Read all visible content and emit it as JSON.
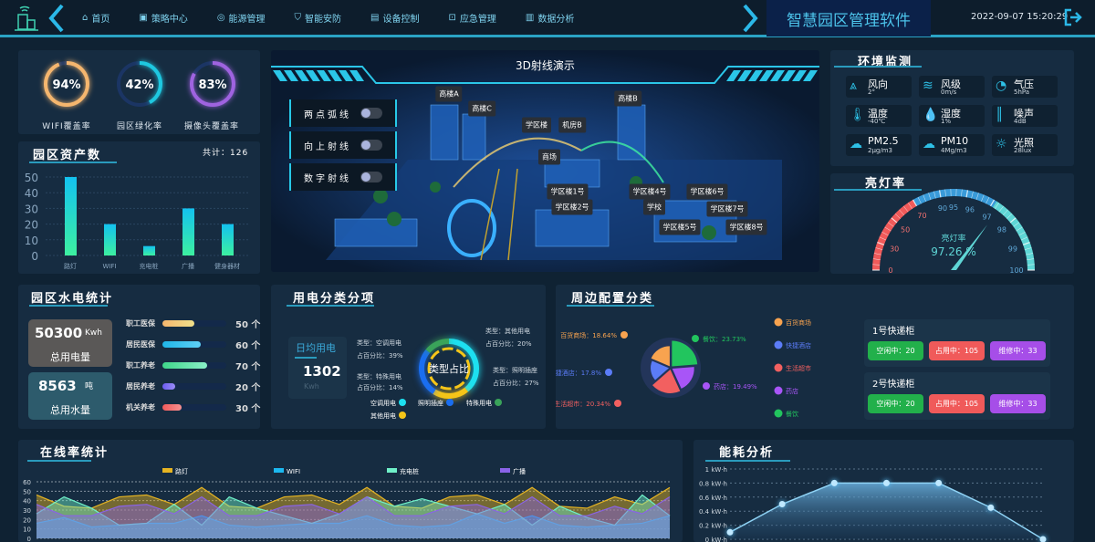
{
  "header": {
    "title": "智慧园区管理软件",
    "datetime": "2022-09-07 15:20:29",
    "nav": [
      {
        "label": "首页",
        "icon": "home-icon"
      },
      {
        "label": "策略中心",
        "icon": "strategy-icon"
      },
      {
        "label": "能源管理",
        "icon": "energy-icon"
      },
      {
        "label": "智能安防",
        "icon": "shield-icon"
      },
      {
        "label": "设备控制",
        "icon": "device-icon"
      },
      {
        "label": "应急管理",
        "icon": "emergency-icon"
      },
      {
        "label": "数据分析",
        "icon": "chart-icon"
      }
    ]
  },
  "rings": [
    {
      "value": "94%",
      "pct": 94,
      "label": "WIFI覆盖率",
      "color": "#f5b66e"
    },
    {
      "value": "42%",
      "pct": 42,
      "label": "园区绿化率",
      "color": "#1ec8e0"
    },
    {
      "value": "83%",
      "pct": 83,
      "label": "摄像头覆盖率",
      "color": "#9f63e0"
    }
  ],
  "assets": {
    "title": "园区资产数",
    "total": "共计：126",
    "chart_data": {
      "type": "bar",
      "categories": [
        "路灯",
        "WIFI",
        "充电桩",
        "广播",
        "健身器材"
      ],
      "values": [
        50,
        20,
        6,
        30,
        20
      ],
      "ylim": [
        0,
        50
      ],
      "yticks": [
        "0",
        "10",
        "20",
        "30",
        "40",
        "50"
      ],
      "grid": true
    }
  },
  "scene": {
    "title": "3D射线演示",
    "toggles": [
      "两点弧线",
      "向上射线",
      "数字射线"
    ],
    "labels": [
      "高楼A",
      "高楼C",
      "高楼B",
      "学区楼",
      "机房B",
      "商场",
      "学区楼1号",
      "学区楼2号",
      "学区楼4号",
      "学区楼6号",
      "学区楼7号",
      "学校",
      "学区楼5号",
      "学区楼8号"
    ]
  },
  "env": {
    "title": "环境监测",
    "items": [
      {
        "name": "风向",
        "value": "2°",
        "icon": "wind-direction-icon"
      },
      {
        "name": "风级",
        "value": "0m/s",
        "icon": "wind-icon"
      },
      {
        "name": "气压",
        "value": "5hPa",
        "icon": "pressure-gauge-icon"
      },
      {
        "name": "温度",
        "value": "-40℃",
        "icon": "thermometer-icon"
      },
      {
        "name": "湿度",
        "value": "1%",
        "icon": "water-drop-icon"
      },
      {
        "name": "噪声",
        "value": "4dB",
        "icon": "sound-wave-icon"
      },
      {
        "name": "PM2.5",
        "value": "2μg/m3",
        "icon": "pm-cloud-icon"
      },
      {
        "name": "PM10",
        "value": "4Mg/m3",
        "icon": "pm-cloud-icon"
      },
      {
        "name": "光照",
        "value": "28lux",
        "icon": "sun-icon"
      }
    ]
  },
  "light": {
    "title": "亮灯率",
    "gauge_label": "亮灯率",
    "value_text": "97.26 %",
    "value": 97.26,
    "scale": [
      "0",
      "30",
      "50",
      "70",
      "90",
      "95",
      "96",
      "97",
      "98",
      "99",
      "100"
    ],
    "colors": {
      "low": "#f05a5a",
      "mid": "#3a9bd9",
      "high": "#5fd6d6"
    }
  },
  "water": {
    "title": "园区水电统计",
    "power": {
      "value": "50300",
      "unit": "Kwh",
      "label": "总用电量"
    },
    "water": {
      "value": "8563",
      "unit": "吨",
      "label": "总用水量"
    },
    "bars": [
      {
        "name": "职工医保",
        "value": 50,
        "text": "50 个",
        "color": "linear-gradient(90deg,#f5b66e,#f0e08a)"
      },
      {
        "name": "居民医保",
        "value": 60,
        "text": "60 个",
        "color": "linear-gradient(90deg,#1fb6e8,#5fd0f5)"
      },
      {
        "name": "职工养老",
        "value": 70,
        "text": "70 个",
        "color": "linear-gradient(90deg,#3fd68a,#8af0c8)"
      },
      {
        "name": "居民养老",
        "value": 20,
        "text": "20 个",
        "color": "linear-gradient(90deg,#6b5cf0,#9a8cf7)"
      },
      {
        "name": "机关养老",
        "value": 30,
        "text": "30 个",
        "color": "linear-gradient(90deg,#f05a5a,#f59090)"
      }
    ]
  },
  "electric": {
    "title": "用电分类分项",
    "daily_label": "日均用电",
    "daily_value": "1302",
    "daily_unit": "Kwh",
    "center": "类型占比",
    "chart_data": {
      "type": "pie",
      "slices": [
        {
          "name": "空调用电",
          "type_text": "类型：空调用电",
          "pct_text": "占百分比：39%",
          "value": 39,
          "color": "#1de0f0"
        },
        {
          "name": "其他用电",
          "type_text": "类型：其他用电",
          "pct_text": "占百分比：20%",
          "value": 20,
          "color": "#f5c518"
        },
        {
          "name": "照明插座",
          "type_text": "类型：照明插座",
          "pct_text": "占百分比：27%",
          "value": 27,
          "color": "#1a6ef0"
        },
        {
          "name": "特殊用电",
          "type_text": "类型：特殊用电",
          "pct_text": "占百分比：14%",
          "value": 14,
          "color": "#3aa35a"
        }
      ]
    }
  },
  "periphery": {
    "title": "周边配置分类",
    "chart_data": {
      "type": "pie",
      "slices": [
        {
          "name": "百货商场",
          "label": "百货商场：18.64%",
          "value": 18.64,
          "color": "#f8a34f"
        },
        {
          "name": "快捷酒店",
          "label": "快捷酒店：17.8%",
          "value": 17.8,
          "color": "#5b7cf7"
        },
        {
          "name": "生活超市",
          "label": "生活超市：20.34%",
          "value": 20.34,
          "color": "#f26060"
        },
        {
          "name": "药店",
          "label": "药店：19.49%",
          "value": 19.49,
          "color": "#a855f7"
        },
        {
          "name": "餐饮",
          "label": "餐饮：23.73%",
          "value": 23.73,
          "color": "#22c55e"
        }
      ],
      "legend": "right"
    },
    "lockers": [
      {
        "name": "1号快递柜",
        "free": "空闲中：20",
        "used": "占用中：105",
        "repair": "维修中：33"
      },
      {
        "name": "2号快递柜",
        "free": "空闲中：20",
        "used": "占用中：105",
        "repair": "维修中：33"
      }
    ],
    "chip_colors": {
      "free": "#22b04b",
      "used": "#f05a5a",
      "repair": "#a64ee8"
    }
  },
  "online": {
    "title": "在线率统计",
    "chart_data": {
      "type": "area",
      "ylim": [
        0,
        60
      ],
      "yticks": [
        "0",
        "10",
        "20",
        "30",
        "40",
        "50",
        "60"
      ],
      "grid": true,
      "legend": "top",
      "series": [
        {
          "name": "路灯",
          "color": "#e6b422",
          "values": [
            46,
            34,
            32,
            44,
            46,
            36,
            54,
            34,
            32,
            44,
            46,
            36,
            54,
            34,
            32,
            44,
            46,
            36,
            54,
            34,
            32,
            44,
            36,
            54
          ]
        },
        {
          "name": "WIFI",
          "color": "#1cb8ef",
          "values": [
            16,
            22,
            12,
            14,
            16,
            16,
            24,
            14,
            12,
            14,
            16,
            16,
            24,
            14,
            12,
            14,
            26,
            16,
            24,
            14,
            12,
            14,
            16,
            24
          ]
        },
        {
          "name": "充电桩",
          "color": "#6ff0c8",
          "values": [
            26,
            44,
            32,
            14,
            16,
            36,
            14,
            44,
            32,
            24,
            16,
            26,
            44,
            34,
            42,
            34,
            26,
            36,
            14,
            34,
            22,
            14,
            46,
            24
          ]
        },
        {
          "name": "广播",
          "color": "#8a63e8",
          "values": [
            36,
            24,
            24,
            34,
            36,
            26,
            44,
            24,
            24,
            34,
            36,
            26,
            44,
            24,
            24,
            34,
            36,
            26,
            44,
            24,
            24,
            34,
            26,
            44
          ]
        }
      ]
    }
  },
  "energy": {
    "title": "能耗分析",
    "chart_data": {
      "type": "line",
      "ylim": [
        0,
        1
      ],
      "yticks": [
        "0 kW·h",
        "0.2 kW·h",
        "0.4 kW·h",
        "0.6 kW·h",
        "0.8 kW·h",
        "1 kW·h"
      ],
      "values": [
        0.1,
        0.5,
        0.8,
        0.8,
        0.8,
        0.45,
        0.0
      ],
      "grid": true,
      "color": "#8fd3f5"
    }
  }
}
